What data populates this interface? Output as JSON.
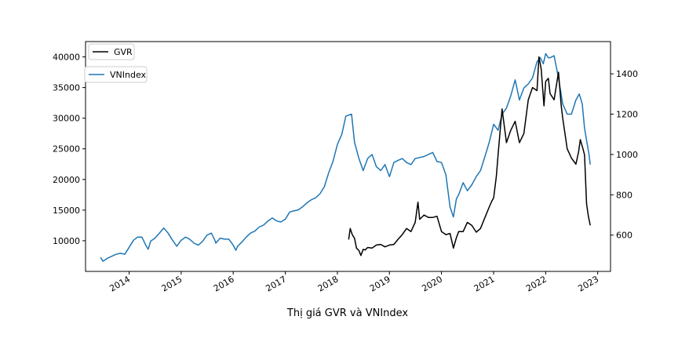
{
  "chart_data": {
    "type": "line",
    "title": "",
    "caption": "Thị giá GVR và VNIndex",
    "xlabel": "",
    "x_tick_labels": [
      "2014",
      "2015",
      "2016",
      "2017",
      "2018",
      "2019",
      "2020",
      "2021",
      "2022",
      "2023"
    ],
    "left_axis": {
      "series": "GVR",
      "ylim": [
        5000,
        42500
      ],
      "ticks": [
        10000,
        15000,
        20000,
        25000,
        30000,
        35000,
        40000
      ],
      "tick_labels": [
        "10000",
        "15000",
        "20000",
        "25000",
        "30000",
        "35000",
        "40000"
      ]
    },
    "right_axis": {
      "series": "VNIndex",
      "ylim": [
        420,
        1560
      ],
      "ticks": [
        600,
        800,
        1000,
        1200,
        1400
      ],
      "tick_labels": [
        "600",
        "800",
        "1000",
        "1200",
        "1400"
      ]
    },
    "xlim": [
      "2013-03-01",
      "2023-04-01"
    ],
    "grid": false,
    "legend": [
      {
        "name": "GVR",
        "placement": "upper-left"
      },
      {
        "name": "VNIndex",
        "placement": "upper-left"
      }
    ],
    "series": [
      {
        "name": "GVR",
        "axis": "left",
        "color": "#000000",
        "x": [
          "2018-03-21",
          "2018-04-01",
          "2018-04-15",
          "2018-05-01",
          "2018-05-15",
          "2018-06-01",
          "2018-06-15",
          "2018-07-01",
          "2018-07-15",
          "2018-08-01",
          "2018-09-01",
          "2018-10-01",
          "2018-11-01",
          "2018-12-01",
          "2019-01-01",
          "2019-02-01",
          "2019-03-01",
          "2019-04-01",
          "2019-05-01",
          "2019-06-01",
          "2019-07-01",
          "2019-07-20",
          "2019-08-01",
          "2019-09-01",
          "2019-10-01",
          "2019-11-01",
          "2019-12-01",
          "2020-01-01",
          "2020-02-01",
          "2020-03-01",
          "2020-03-25",
          "2020-04-15",
          "2020-05-01",
          "2020-06-01",
          "2020-07-01",
          "2020-08-01",
          "2020-09-01",
          "2020-10-01",
          "2020-11-01",
          "2020-12-01",
          "2020-12-20",
          "2021-01-01",
          "2021-01-20",
          "2021-02-01",
          "2021-03-01",
          "2021-04-01",
          "2021-05-01",
          "2021-06-01",
          "2021-07-01",
          "2021-08-01",
          "2021-09-01",
          "2021-10-01",
          "2021-11-01",
          "2021-11-15",
          "2021-12-01",
          "2021-12-20",
          "2022-01-01",
          "2022-01-20",
          "2022-02-01",
          "2022-03-01",
          "2022-04-01",
          "2022-04-20",
          "2022-05-01",
          "2022-06-01",
          "2022-07-01",
          "2022-08-01",
          "2022-08-20",
          "2022-09-01",
          "2022-09-20",
          "2022-10-01",
          "2022-10-15",
          "2022-10-28",
          "2022-11-10"
        ],
        "values": [
          10200,
          12000,
          11000,
          10400,
          8800,
          8400,
          7600,
          8600,
          8500,
          8900,
          8800,
          9300,
          9400,
          9000,
          9300,
          9400,
          10200,
          11000,
          12000,
          11500,
          13000,
          16300,
          13500,
          14200,
          13800,
          13800,
          14000,
          11500,
          11000,
          11200,
          8800,
          10500,
          11500,
          11500,
          13000,
          12500,
          11400,
          12000,
          13800,
          15500,
          16500,
          17000,
          20500,
          24000,
          31500,
          26000,
          28000,
          29500,
          26000,
          27500,
          33000,
          35000,
          34500,
          40000,
          38000,
          32000,
          36000,
          36500,
          34000,
          33000,
          37500,
          32000,
          30000,
          25000,
          23500,
          22500,
          24500,
          26500,
          25000,
          24000,
          16000,
          14000,
          12500
        ]
      },
      {
        "name": "VNIndex",
        "axis": "right",
        "color": "#1f77b4",
        "x": [
          "2013-06-15",
          "2013-07-01",
          "2013-08-01",
          "2013-09-01",
          "2013-10-01",
          "2013-11-01",
          "2013-12-01",
          "2014-01-01",
          "2014-02-01",
          "2014-03-01",
          "2014-04-01",
          "2014-05-01",
          "2014-05-15",
          "2014-06-01",
          "2014-07-01",
          "2014-08-01",
          "2014-09-01",
          "2014-10-01",
          "2014-11-01",
          "2014-12-01",
          "2015-01-01",
          "2015-02-01",
          "2015-03-01",
          "2015-04-01",
          "2015-05-01",
          "2015-06-01",
          "2015-07-01",
          "2015-08-01",
          "2015-08-25",
          "2015-09-01",
          "2015-10-01",
          "2015-11-01",
          "2015-12-01",
          "2016-01-01",
          "2016-01-20",
          "2016-02-01",
          "2016-03-01",
          "2016-04-01",
          "2016-05-01",
          "2016-06-01",
          "2016-07-01",
          "2016-08-01",
          "2016-09-01",
          "2016-10-01",
          "2016-11-01",
          "2016-12-01",
          "2017-01-01",
          "2017-02-01",
          "2017-03-01",
          "2017-04-01",
          "2017-05-01",
          "2017-06-01",
          "2017-07-01",
          "2017-08-01",
          "2017-09-01",
          "2017-10-01",
          "2017-11-01",
          "2017-12-01",
          "2018-01-01",
          "2018-02-01",
          "2018-03-01",
          "2018-04-10",
          "2018-05-01",
          "2018-06-01",
          "2018-07-01",
          "2018-08-01",
          "2018-09-01",
          "2018-10-01",
          "2018-11-01",
          "2018-12-01",
          "2019-01-01",
          "2019-02-01",
          "2019-03-01",
          "2019-04-01",
          "2019-05-01",
          "2019-06-01",
          "2019-07-01",
          "2019-08-01",
          "2019-09-01",
          "2019-10-01",
          "2019-11-01",
          "2019-12-01",
          "2020-01-01",
          "2020-02-01",
          "2020-03-01",
          "2020-03-25",
          "2020-04-15",
          "2020-05-01",
          "2020-06-01",
          "2020-07-01",
          "2020-08-01",
          "2020-09-01",
          "2020-10-01",
          "2020-11-01",
          "2020-12-01",
          "2021-01-01",
          "2021-02-01",
          "2021-03-01",
          "2021-04-01",
          "2021-05-01",
          "2021-06-01",
          "2021-07-01",
          "2021-08-01",
          "2021-09-01",
          "2021-10-01",
          "2021-11-01",
          "2021-11-25",
          "2021-12-15",
          "2022-01-01",
          "2022-01-20",
          "2022-02-01",
          "2022-03-01",
          "2022-04-01",
          "2022-05-01",
          "2022-06-01",
          "2022-07-01",
          "2022-08-01",
          "2022-08-25",
          "2022-09-15",
          "2022-10-01",
          "2022-10-15",
          "2022-11-01",
          "2022-11-10"
        ],
        "values": [
          490,
          470,
          485,
          495,
          505,
          510,
          505,
          540,
          575,
          590,
          590,
          545,
          530,
          570,
          585,
          610,
          635,
          610,
          575,
          545,
          575,
          590,
          580,
          560,
          550,
          570,
          600,
          610,
          575,
          560,
          585,
          580,
          580,
          550,
          525,
          545,
          565,
          590,
          610,
          620,
          640,
          650,
          670,
          685,
          670,
          665,
          680,
          715,
          720,
          725,
          740,
          760,
          775,
          785,
          805,
          840,
          910,
          965,
          1050,
          1100,
          1190,
          1200,
          1060,
          980,
          920,
          980,
          1000,
          940,
          920,
          950,
          890,
          960,
          970,
          980,
          960,
          950,
          980,
          985,
          990,
          1000,
          1010,
          965,
          960,
          900,
          740,
          690,
          780,
          800,
          860,
          820,
          850,
          890,
          920,
          990,
          1060,
          1150,
          1120,
          1200,
          1230,
          1290,
          1370,
          1270,
          1330,
          1350,
          1380,
          1460,
          1480,
          1450,
          1500,
          1480,
          1480,
          1490,
          1380,
          1250,
          1200,
          1200,
          1270,
          1300,
          1250,
          1130,
          1070,
          1000,
          950
        ]
      }
    ]
  }
}
